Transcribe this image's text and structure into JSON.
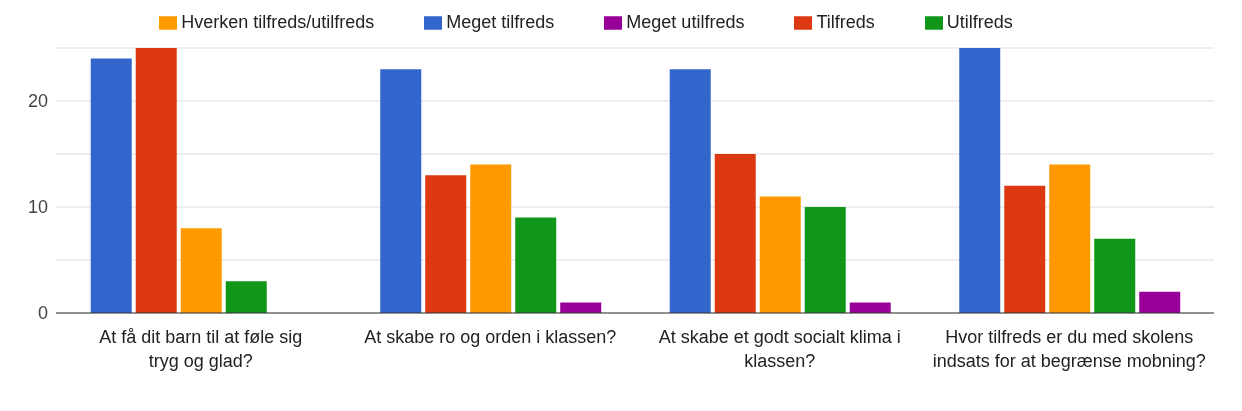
{
  "chart_data": {
    "type": "bar",
    "categories": [
      "At få dit barn til at føle sig tryg og glad?",
      "At skabe ro og orden i klassen?",
      "At skabe et godt socialt klima i klassen?",
      "Hvor tilfreds er du med skolens indsats for at begrænse mobning?"
    ],
    "series": [
      {
        "name": "Meget tilfreds",
        "color": "#3366cc",
        "values": [
          24,
          23,
          23,
          25
        ]
      },
      {
        "name": "Tilfreds",
        "color": "#dc3912",
        "values": [
          25,
          13,
          15,
          12
        ]
      },
      {
        "name": "Hverken tilfreds/utilfreds",
        "color": "#ff9900",
        "values": [
          8,
          14,
          11,
          14
        ]
      },
      {
        "name": "Utilfreds",
        "color": "#109618",
        "values": [
          3,
          9,
          10,
          7
        ]
      },
      {
        "name": "Meget utilfreds",
        "color": "#990099",
        "values": [
          0,
          1,
          1,
          2
        ]
      }
    ],
    "ylim": [
      0,
      25
    ],
    "yticks": [
      0,
      {
        "value": 5,
        "label": null
      },
      10,
      {
        "value": 15,
        "label": null
      },
      20,
      {
        "value": 25,
        "label": null
      }
    ],
    "grid": "y",
    "legend": "top"
  }
}
